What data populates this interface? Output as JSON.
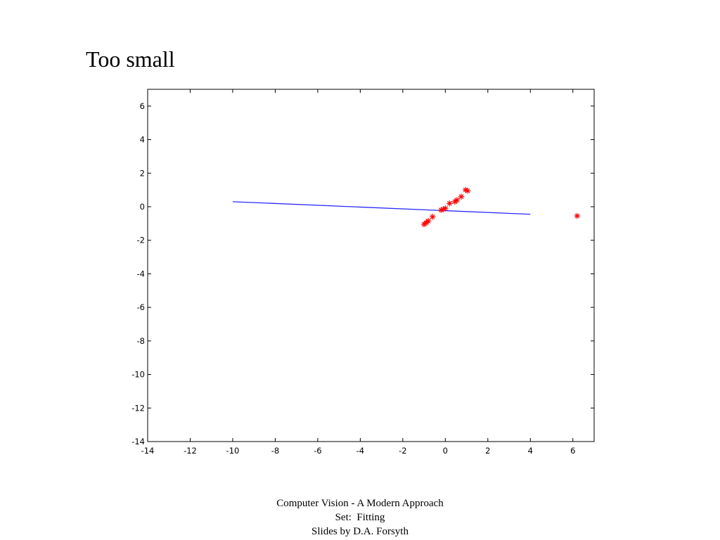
{
  "slide": {
    "title": "Too small"
  },
  "footer": {
    "line1": "Computer Vision - A Modern Approach",
    "line2": "Set:  Fitting",
    "line3": "Slides by D.A. Forsyth"
  },
  "colors": {
    "fit_line": "#2b2bff",
    "points": "#ff0000",
    "axes": "#000000"
  },
  "chart_data": {
    "type": "scatter",
    "title": "",
    "xlabel": "",
    "ylabel": "",
    "xlim": [
      -14,
      7
    ],
    "ylim": [
      -14,
      7
    ],
    "x_ticks": [
      -14,
      -12,
      -10,
      -8,
      -6,
      -4,
      -2,
      0,
      2,
      4,
      6
    ],
    "y_ticks": [
      -14,
      -12,
      -10,
      -8,
      -6,
      -4,
      -2,
      0,
      2,
      4,
      6
    ],
    "grid": false,
    "marker": "*",
    "points": [
      {
        "x": -1.0,
        "y": -1.05
      },
      {
        "x": -0.9,
        "y": -0.95
      },
      {
        "x": -0.8,
        "y": -0.85
      },
      {
        "x": -0.6,
        "y": -0.6
      },
      {
        "x": -0.2,
        "y": -0.2
      },
      {
        "x": -0.1,
        "y": -0.15
      },
      {
        "x": 0.0,
        "y": -0.1
      },
      {
        "x": 0.2,
        "y": 0.2
      },
      {
        "x": 0.45,
        "y": 0.3
      },
      {
        "x": 0.55,
        "y": 0.4
      },
      {
        "x": 0.75,
        "y": 0.6
      },
      {
        "x": 0.95,
        "y": 1.0
      },
      {
        "x": 1.05,
        "y": 0.95
      },
      {
        "x": 6.2,
        "y": -0.55
      }
    ],
    "fit_line": {
      "x": [
        -10,
        4
      ],
      "y": [
        0.3,
        -0.45
      ]
    }
  }
}
